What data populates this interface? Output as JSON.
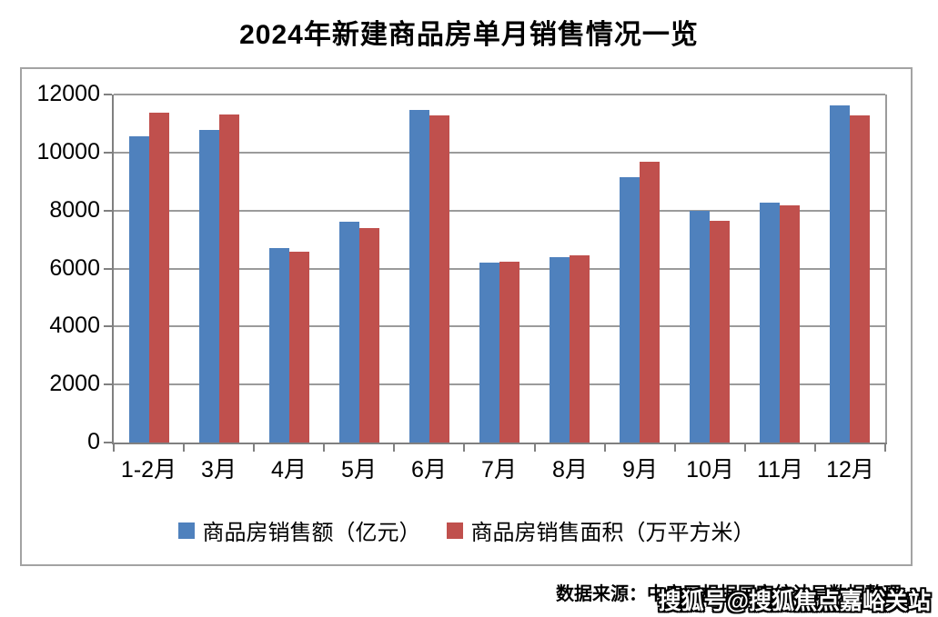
{
  "page": {
    "title": "2024年新建商品房单月销售情况一览",
    "source_note": "数据来源：中房网根据国家统计局数据整理",
    "watermark": "搜狐号@搜狐焦点嘉峪关站"
  },
  "theme": {
    "title_color": "#000000",
    "gridline_color": "#9b9b9b",
    "axis_color": "#808080",
    "frame_border_color": "#a3a3a3",
    "background": "#ffffff"
  },
  "chart_data": {
    "type": "bar",
    "title": "2024年新建商品房单月销售情况一览",
    "categories": [
      "1-2月",
      "3月",
      "4月",
      "5月",
      "6月",
      "7月",
      "8月",
      "9月",
      "10月",
      "11月",
      "12月"
    ],
    "series": [
      {
        "name": "商品房销售额（亿元）",
        "color": "#4F81BD",
        "values": [
          10566,
          10789,
          6712,
          7598,
          11468,
          6197,
          6393,
          9157,
          7975,
          8270,
          11625
        ]
      },
      {
        "name": "商品房销售面积（万平方米）",
        "color": "#C0504D",
        "values": [
          11369,
          11299,
          6584,
          7390,
          11274,
          6233,
          6453,
          9682,
          7646,
          8188,
          11267
        ]
      }
    ],
    "xlabel": "",
    "ylabel": "",
    "ylim": [
      0,
      12000
    ],
    "ytick_step": 2000,
    "yticks": [
      0,
      2000,
      4000,
      6000,
      8000,
      10000,
      12000
    ],
    "grid": true,
    "legend_position": "bottom"
  }
}
